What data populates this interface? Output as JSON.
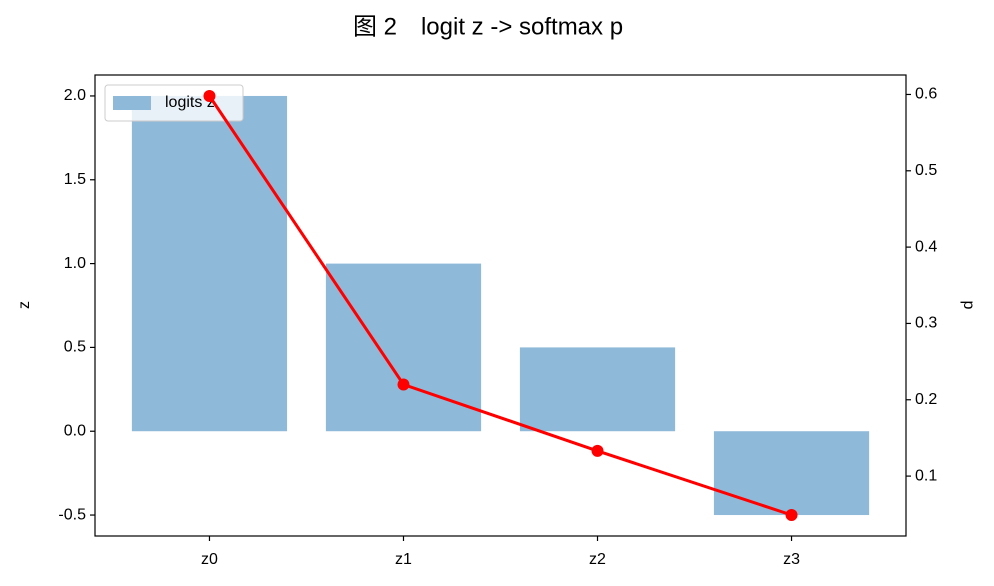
{
  "chart_data": {
    "type": "bar_line",
    "title": "图 2　logit z -> softmax p",
    "categories": [
      "z0",
      "z1",
      "z2",
      "z3"
    ],
    "series": [
      {
        "name": "logits z",
        "type": "bar",
        "color": "#8fb9d9",
        "values": [
          2.0,
          1.0,
          0.5,
          -0.5
        ]
      },
      {
        "type": "line",
        "axis": "y2",
        "color": "#ff0000",
        "values": [
          0.598,
          0.22,
          0.133,
          0.049
        ]
      }
    ],
    "ylabel": "z",
    "y2label": "p",
    "ylim": [
      -0.625,
      2.125
    ],
    "yticks": [
      {
        "value": -0.5,
        "label": "-0.5"
      },
      {
        "value": 0,
        "label": "0.0"
      },
      0.5,
      {
        "value": 1,
        "label": "1.0"
      },
      1.5,
      {
        "value": 2,
        "label": "2.0"
      }
    ],
    "y2lim": [
      0.0215,
      0.6255
    ],
    "y2ticks": [
      0.1,
      0.2,
      0.3,
      0.4,
      0.5,
      0.6
    ],
    "legend": "upper left",
    "grid": false
  }
}
